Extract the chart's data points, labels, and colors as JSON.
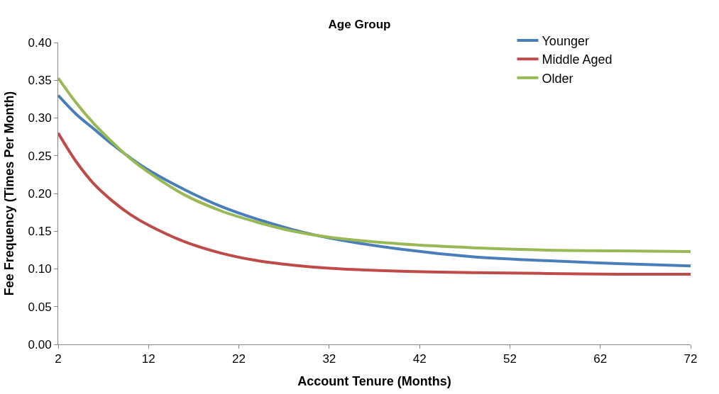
{
  "chart_data": {
    "type": "line",
    "title": "Age Group",
    "xlabel": "Account Tenure (Months)",
    "ylabel": "Fee Frequency (Times Per Month)",
    "x": [
      2,
      4,
      6,
      8,
      10,
      12,
      16,
      20,
      24,
      28,
      32,
      40,
      48,
      56,
      64,
      72
    ],
    "series": [
      {
        "name": "Younger",
        "color": "#4a7ebb",
        "values": [
          0.33,
          0.305,
          0.285,
          0.265,
          0.247,
          0.231,
          0.205,
          0.183,
          0.166,
          0.152,
          0.141,
          0.126,
          0.116,
          0.111,
          0.107,
          0.104
        ]
      },
      {
        "name": "Middle Aged",
        "color": "#be4b48",
        "values": [
          0.28,
          0.242,
          0.212,
          0.19,
          0.172,
          0.158,
          0.136,
          0.121,
          0.111,
          0.105,
          0.101,
          0.097,
          0.095,
          0.094,
          0.093,
          0.093
        ]
      },
      {
        "name": "Older",
        "color": "#98b954",
        "values": [
          0.353,
          0.32,
          0.292,
          0.268,
          0.246,
          0.228,
          0.198,
          0.177,
          0.162,
          0.15,
          0.142,
          0.133,
          0.128,
          0.125,
          0.124,
          0.123
        ]
      }
    ],
    "xlim": [
      2,
      72
    ],
    "xticks": [
      2,
      12,
      22,
      32,
      42,
      52,
      62,
      72
    ],
    "ylim": [
      0,
      0.4
    ],
    "yticks": [
      {
        "value": 0,
        "label": "0.00"
      },
      {
        "value": 0.05,
        "label": "0.05"
      },
      {
        "value": 0.1,
        "label": "0.10"
      },
      {
        "value": 0.15,
        "label": "0.15"
      },
      {
        "value": 0.2,
        "label": "0.20"
      },
      {
        "value": 0.25,
        "label": "0.25"
      },
      {
        "value": 0.3,
        "label": "0.30"
      },
      {
        "value": 0.35,
        "label": "0.35"
      },
      {
        "value": 0.4,
        "label": "0.40"
      }
    ],
    "legend": "top right",
    "marker": "none",
    "line_style": "solid"
  }
}
